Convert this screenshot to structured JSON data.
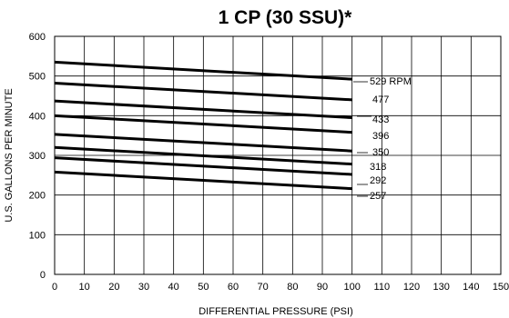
{
  "chart_data": {
    "type": "line",
    "title": "1 CP (30 SSU)*",
    "xlabel": "DIFFERENTIAL PRESSURE (PSI)",
    "ylabel": "U.S. GALLONS PER MINUTE",
    "xlim": [
      0,
      150
    ],
    "ylim": [
      0,
      600
    ],
    "xticks": [
      0,
      10,
      20,
      30,
      40,
      50,
      60,
      70,
      80,
      90,
      100,
      110,
      120,
      130,
      140,
      150
    ],
    "yticks": [
      0,
      100,
      200,
      300,
      400,
      500,
      600
    ],
    "grid": true,
    "line_color": "#000000",
    "series": [
      {
        "name": "529 RPM",
        "x": [
          0,
          100
        ],
        "y": [
          535,
          492
        ]
      },
      {
        "name": "477",
        "x": [
          0,
          100
        ],
        "y": [
          482,
          440
        ]
      },
      {
        "name": "433",
        "x": [
          0,
          100
        ],
        "y": [
          437,
          395
        ]
      },
      {
        "name": "396",
        "x": [
          0,
          100
        ],
        "y": [
          400,
          358
        ]
      },
      {
        "name": "350",
        "x": [
          0,
          100
        ],
        "y": [
          353,
          311
        ]
      },
      {
        "name": "318",
        "x": [
          0,
          100
        ],
        "y": [
          320,
          278
        ]
      },
      {
        "name": "292",
        "x": [
          0,
          100
        ],
        "y": [
          294,
          252
        ]
      },
      {
        "name": "257",
        "x": [
          0,
          100
        ],
        "y": [
          258,
          216
        ]
      }
    ]
  }
}
